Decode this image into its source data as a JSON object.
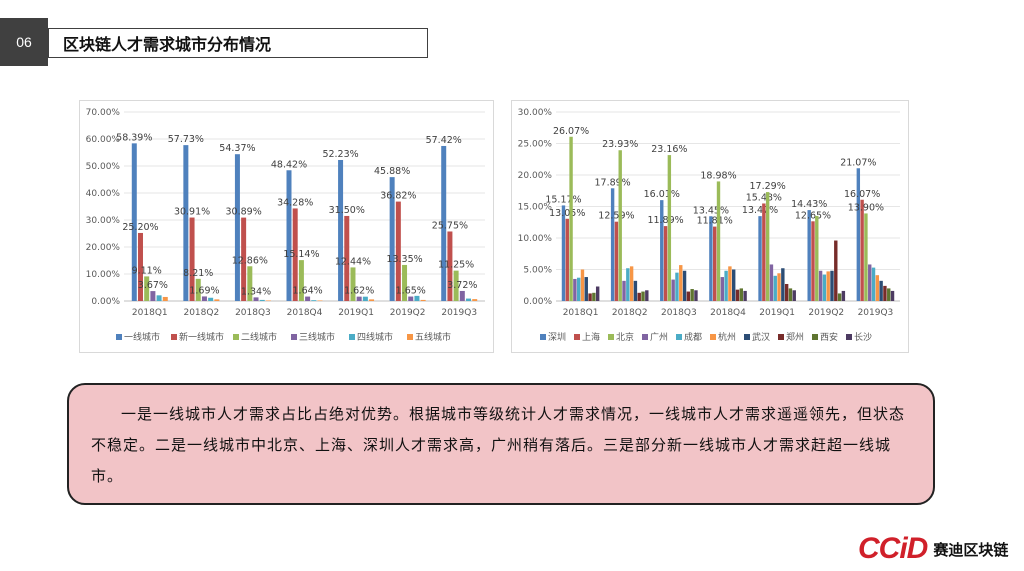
{
  "slide_number": "06",
  "title": "区块链人才需求城市分布情况",
  "callout_text": "一是一线城市人才需求占比占绝对优势。根据城市等级统计人才需求情况，一线城市人才需求遥遥领先，但状态不稳定。二是一线城市中北京、上海、深圳人才需求高，广州稍有落后。三是部分新一线城市人才需求赶超一线城市。",
  "logo": {
    "main": "CCiD",
    "sub": "赛迪区块链",
    "color": "#d0202a"
  },
  "chart_data": [
    {
      "type": "bar",
      "categories": [
        "2018Q1",
        "2018Q2",
        "2018Q3",
        "2018Q4",
        "2019Q1",
        "2019Q2",
        "2019Q3"
      ],
      "ylim": [
        0,
        70
      ],
      "yticks": [
        "0.00%",
        "10.00%",
        "20.00%",
        "30.00%",
        "40.00%",
        "50.00%",
        "60.00%",
        "70.00%"
      ],
      "legend_position": "bottom",
      "series": [
        {
          "name": "一线城市",
          "color": "#4f81bd",
          "values": [
            58.39,
            57.73,
            54.37,
            48.42,
            52.23,
            45.88,
            57.42
          ],
          "labels": [
            "58.39%",
            "57.73%",
            "54.37%",
            "48.42%",
            "52.23%",
            "45.88%",
            "57.42%"
          ]
        },
        {
          "name": "新一线城市",
          "color": "#c0504d",
          "values": [
            25.2,
            30.91,
            30.89,
            34.28,
            31.5,
            36.82,
            25.75
          ],
          "labels": [
            "25.20%",
            "30.91%",
            "30.89%",
            "34.28%",
            "31.50%",
            "36.82%",
            "25.75%"
          ]
        },
        {
          "name": "二线城市",
          "color": "#9bbb59",
          "values": [
            9.11,
            8.21,
            12.86,
            15.14,
            12.44,
            13.35,
            11.25
          ],
          "labels": [
            "9.11%",
            "8.21%",
            "12.86%",
            "15.14%",
            "12.44%",
            "13.35%",
            "11.25%"
          ]
        },
        {
          "name": "三线城市",
          "color": "#8064a2",
          "values": [
            3.67,
            1.69,
            1.34,
            1.64,
            1.62,
            1.65,
            3.72
          ],
          "labels": [
            "3.67%",
            "1.69%",
            "1.34%",
            "1.64%",
            "1.62%",
            "1.65%",
            "3.72%"
          ]
        },
        {
          "name": "四线城市",
          "color": "#4bacc6",
          "values": [
            2.1,
            1.2,
            0.4,
            0.3,
            1.6,
            1.9,
            0.9
          ]
        },
        {
          "name": "五线城市",
          "color": "#f79646",
          "values": [
            1.5,
            0.6,
            0.2,
            0.2,
            0.6,
            0.4,
            0.7
          ]
        }
      ]
    },
    {
      "type": "bar",
      "categories": [
        "2018Q1",
        "2018Q2",
        "2018Q3",
        "2018Q4",
        "2019Q1",
        "2019Q2",
        "2019Q3"
      ],
      "ylim": [
        0,
        30
      ],
      "yticks": [
        "0.00%",
        "5.00%",
        "10.00%",
        "15.00%",
        "20.00%",
        "25.00%",
        "30.00%"
      ],
      "legend_position": "bottom",
      "series": [
        {
          "name": "深圳",
          "color": "#4f81bd",
          "values": [
            15.17,
            17.89,
            16.01,
            13.45,
            13.47,
            14.43,
            21.07
          ],
          "labels": [
            "15.17%",
            "17.89%",
            "16.01%",
            "13.45%",
            "13.47%",
            "14.43%",
            "21.07%"
          ]
        },
        {
          "name": "上海",
          "color": "#c0504d",
          "values": [
            13.05,
            12.59,
            11.89,
            11.81,
            15.48,
            12.65,
            16.07
          ],
          "labels": [
            "13.05%",
            "12.59%",
            "11.89%",
            "11.81%",
            "15.48%",
            "12.65%",
            "16.07%"
          ]
        },
        {
          "name": "北京",
          "color": "#9bbb59",
          "values": [
            26.07,
            23.93,
            23.16,
            18.98,
            17.29,
            13.5,
            13.9
          ],
          "labels": [
            "26.07%",
            "23.93%",
            "23.16%",
            "18.98%",
            "17.29%",
            "",
            "13.90%"
          ]
        },
        {
          "name": "广州",
          "color": "#8064a2",
          "values": [
            3.5,
            3.2,
            3.4,
            3.8,
            5.8,
            4.8,
            5.8
          ]
        },
        {
          "name": "成都",
          "color": "#4bacc6",
          "values": [
            3.7,
            5.2,
            4.5,
            4.8,
            4.0,
            4.2,
            5.3
          ]
        },
        {
          "name": "杭州",
          "color": "#f79646",
          "values": [
            5.0,
            5.5,
            5.7,
            5.5,
            4.4,
            4.7,
            4.1
          ]
        },
        {
          "name": "武汉",
          "color": "#2c4d75",
          "values": [
            3.8,
            3.2,
            4.8,
            5.0,
            5.2,
            4.8,
            3.2
          ]
        },
        {
          "name": "郑州",
          "color": "#772c2a",
          "values": [
            1.2,
            1.3,
            1.5,
            1.8,
            2.7,
            9.6,
            2.4
          ]
        },
        {
          "name": "西安",
          "color": "#5f7530",
          "values": [
            1.3,
            1.5,
            1.9,
            2.0,
            2.0,
            1.2,
            2.0
          ]
        },
        {
          "name": "长沙",
          "color": "#4d3b62",
          "values": [
            2.3,
            1.7,
            1.7,
            1.6,
            1.7,
            1.6,
            1.6
          ]
        }
      ]
    }
  ]
}
